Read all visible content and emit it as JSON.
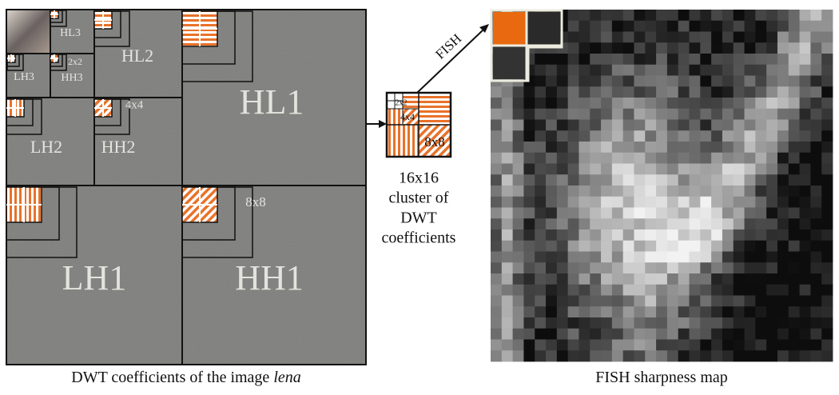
{
  "left_panel": {
    "subbands": [
      {
        "label": "HL3"
      },
      {
        "label": "LH3"
      },
      {
        "label": "2x2"
      },
      {
        "label": "HH3"
      },
      {
        "label": "HL2"
      },
      {
        "label": "LH2"
      },
      {
        "label": "4x4"
      },
      {
        "label": "HH2"
      },
      {
        "label": "HL1"
      },
      {
        "label": "LH1"
      },
      {
        "label": "8x8"
      },
      {
        "label": "HH1"
      }
    ],
    "caption": {
      "text": "DWT coefficients of the image",
      "emphasis": "lena"
    }
  },
  "cluster": {
    "labels": [
      "2x2",
      "4x4",
      "8x8"
    ],
    "description": [
      "16x16",
      "cluster of",
      "DWT",
      "coefficients"
    ]
  },
  "arrow_label": "FISH",
  "right_panel": {
    "caption": "FISH sharpness map"
  }
}
